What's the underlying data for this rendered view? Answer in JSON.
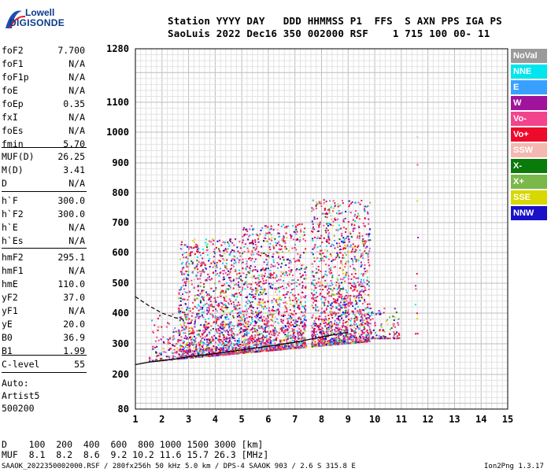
{
  "logo": {
    "line1": "Lowell",
    "line2": "DIGISONDE"
  },
  "header": {
    "line1": "Station YYYY DAY   DDD HHMMSS P1  FFS  S AXN PPS IGA PS",
    "line2": "SaoLuis 2022 Dec16 350 002000 RSF    1 715 100 00- 11"
  },
  "params": {
    "group1": [
      {
        "label": "foF2",
        "value": "7.700"
      },
      {
        "label": "foF1",
        "value": "N/A"
      },
      {
        "label": "foF1p",
        "value": "N/A"
      },
      {
        "label": "foE",
        "value": "N/A"
      },
      {
        "label": "foEp",
        "value": "0.35"
      },
      {
        "label": "fxI",
        "value": "N/A"
      },
      {
        "label": "foEs",
        "value": "N/A"
      },
      {
        "label": "fmin",
        "value": "5.70"
      }
    ],
    "group2": [
      {
        "label": "MUF(D)",
        "value": "26.25"
      },
      {
        "label": "M(D)",
        "value": "3.41"
      },
      {
        "label": "D",
        "value": "N/A"
      }
    ],
    "group3": [
      {
        "label": "h`F",
        "value": "300.0"
      },
      {
        "label": "h`F2",
        "value": "300.0"
      },
      {
        "label": "h`E",
        "value": "N/A"
      },
      {
        "label": "h`Es",
        "value": "N/A"
      }
    ],
    "group4": [
      {
        "label": "hmF2",
        "value": "295.1"
      },
      {
        "label": "hmF1",
        "value": "N/A"
      },
      {
        "label": "hmE",
        "value": "110.0"
      },
      {
        "label": "yF2",
        "value": "37.0"
      },
      {
        "label": "yF1",
        "value": "N/A"
      },
      {
        "label": "yE",
        "value": "20.0"
      },
      {
        "label": "B0",
        "value": "36.9"
      },
      {
        "label": "B1",
        "value": "1.99"
      }
    ],
    "group5": [
      {
        "label": "C-level",
        "value": "55"
      }
    ],
    "autoscaling": [
      "Auto:",
      "Artist5",
      "500200"
    ]
  },
  "legend": [
    {
      "label": "NoVal",
      "color": "#9a9a9a"
    },
    {
      "label": "NNE",
      "color": "#00e5ee"
    },
    {
      "label": "E",
      "color": "#3aa0ff"
    },
    {
      "label": "W",
      "color": "#a0149c"
    },
    {
      "label": "Vo-",
      "color": "#f2448c"
    },
    {
      "label": "Vo+",
      "color": "#ee0a2a"
    },
    {
      "label": "SSW",
      "color": "#f4b8b0"
    },
    {
      "label": "X-",
      "color": "#0a7a0a"
    },
    {
      "label": "X+",
      "color": "#7ab84a"
    },
    {
      "label": "SSE",
      "color": "#d8d800"
    },
    {
      "label": "NNW",
      "color": "#1a10c8"
    }
  ],
  "bottom": {
    "d_row": "D    100  200  400  600  800 1000 1500 3000 [km]",
    "muf_row": "MUF  8.1  8.2  8.6  9.2 10.2 11.6 15.7 26.3 [MHz]",
    "footer_left": "SAAOK_2022350002000.RSF / 280fx256h 50 kHz 5.0 km / DPS-4 SAAOK 903 / 2.6 S 315.8 E",
    "footer_right": "Ion2Png 1.3.17"
  },
  "chart_data": {
    "type": "scatter",
    "title": "",
    "xlabel": "",
    "ylabel": "",
    "xlim": [
      1,
      15
    ],
    "ylim": [
      80,
      1280
    ],
    "x_ticks": [
      1,
      2,
      3,
      4,
      5,
      6,
      7,
      8,
      9,
      10,
      11,
      12,
      13,
      14,
      15
    ],
    "y_ticks": [
      80,
      200,
      300,
      400,
      500,
      600,
      700,
      800,
      900,
      1000,
      1100,
      1280
    ],
    "y_scale": "nonlinear",
    "grid": true,
    "legend_position": "right",
    "x_minor_per_major": 5,
    "series": [
      {
        "color": "#000000",
        "style": "solid",
        "values_x": [
          1.0,
          1.5,
          2.0,
          2.5,
          3.0,
          4.0,
          5.0,
          6.0,
          7.0,
          8.0,
          8.5,
          9.0
        ],
        "values_y": [
          232,
          240,
          245,
          250,
          258,
          268,
          280,
          292,
          305,
          322,
          330,
          338
        ]
      },
      {
        "color": "#000000",
        "style": "dashed",
        "values_x": [
          1.0,
          1.5,
          2.0,
          2.5,
          2.8
        ],
        "values_y": [
          455,
          425,
          400,
          385,
          380
        ]
      }
    ],
    "echo_clusters": [
      {
        "x_range": [
          1.5,
          2.6
        ],
        "y_range": [
          150,
          400
        ],
        "density": "low"
      },
      {
        "x_range": [
          2.6,
          5.0
        ],
        "y_range": [
          230,
          650
        ],
        "density": "high"
      },
      {
        "x_range": [
          5.0,
          7.4
        ],
        "y_range": [
          260,
          700
        ],
        "density": "high"
      },
      {
        "x_range": [
          7.6,
          9.8
        ],
        "y_range": [
          270,
          780
        ],
        "density": "high"
      },
      {
        "x_range": [
          9.8,
          10.9
        ],
        "y_range": [
          320,
          420
        ],
        "density": "low"
      },
      {
        "x_range": [
          11.5,
          11.6
        ],
        "y_range": [
          220,
          1000
        ],
        "density": "sparse"
      }
    ]
  }
}
